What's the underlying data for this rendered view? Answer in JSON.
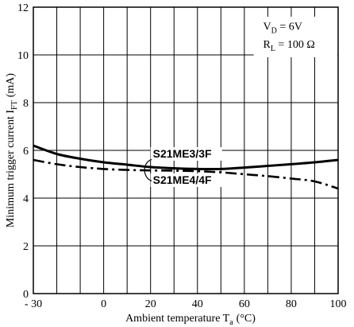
{
  "chart_data": {
    "type": "line",
    "xlabel": "Ambient temperature T",
    "xlabel_sub": "a",
    "xlabel_unit": "(°C)",
    "ylabel": "Minimum trigger current I",
    "ylabel_sub": "FT",
    "ylabel_unit": "(mA)",
    "xlim": [
      -30,
      100
    ],
    "ylim": [
      0,
      12
    ],
    "x_ticks": [
      -30,
      0,
      20,
      40,
      60,
      80,
      100
    ],
    "x_tick_labels": [
      "- 30",
      "0",
      "20",
      "40",
      "60",
      "80",
      "100"
    ],
    "y_ticks": [
      0,
      2,
      4,
      6,
      8,
      10,
      12
    ],
    "y_tick_labels": [
      "0",
      "2",
      "4",
      "6",
      "8",
      "10",
      "12"
    ],
    "x_grid_step": 10,
    "y_grid_step": 2,
    "grid": true,
    "conditions": [
      {
        "main": "V",
        "sub": "D",
        "rest": " = 6V"
      },
      {
        "main": "R",
        "sub": "L",
        "rest": " = 100 Ω"
      }
    ],
    "series": [
      {
        "name": "S21ME3/3F",
        "style": "solid",
        "x": [
          -30,
          -20,
          -10,
          0,
          10,
          20,
          30,
          40,
          50,
          60,
          70,
          80,
          90,
          100
        ],
        "y": [
          6.2,
          5.85,
          5.65,
          5.5,
          5.4,
          5.3,
          5.25,
          5.22,
          5.22,
          5.28,
          5.35,
          5.42,
          5.5,
          5.6
        ]
      },
      {
        "name": "S21ME4/4F",
        "style": "dashdot",
        "x": [
          -30,
          -20,
          -10,
          0,
          10,
          20,
          30,
          40,
          50,
          60,
          70,
          80,
          90,
          100
        ],
        "y": [
          5.6,
          5.42,
          5.3,
          5.22,
          5.18,
          5.16,
          5.15,
          5.13,
          5.08,
          5.0,
          4.92,
          4.82,
          4.7,
          4.4
        ]
      }
    ]
  }
}
